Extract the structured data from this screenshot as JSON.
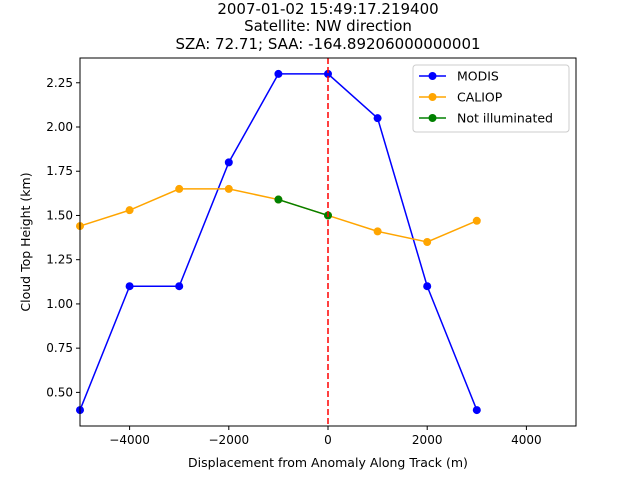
{
  "chart_data": {
    "type": "line",
    "title_lines": [
      "2007-01-02 15:49:17.219400",
      "Satellite: NW direction",
      "SZA: 72.71; SAA: -164.89206000000001"
    ],
    "xlabel": "Displacement from Anomaly Along Track (m)",
    "ylabel": "Cloud Top Height (km)",
    "xlim": [
      -5000,
      5000
    ],
    "ylim": [
      0.31,
      2.39
    ],
    "xticks": [
      -4000,
      -2000,
      0,
      2000,
      4000
    ],
    "xtick_labels": [
      "−4000",
      "−2000",
      "0",
      "2000",
      "4000"
    ],
    "yticks": [
      0.5,
      0.75,
      1.0,
      1.25,
      1.5,
      1.75,
      2.0,
      2.25
    ],
    "ytick_labels": [
      "0.50",
      "0.75",
      "1.00",
      "1.25",
      "1.50",
      "1.75",
      "2.00",
      "2.25"
    ],
    "legend_position": "top-right",
    "grid": false,
    "series": [
      {
        "name": "MODIS",
        "color": "#0000ff",
        "x": [
          -5000,
          -4000,
          -3000,
          -2000,
          -1000,
          0,
          1000,
          2000,
          3000
        ],
        "y": [
          0.4,
          1.1,
          1.1,
          1.8,
          2.3,
          2.3,
          2.05,
          1.1,
          0.4
        ]
      },
      {
        "name": "CALIOP",
        "color": "#ffa500",
        "x": [
          -5000,
          -4000,
          -3000,
          -2000,
          -1000,
          0,
          1000,
          2000,
          3000
        ],
        "y": [
          1.44,
          1.53,
          1.65,
          1.65,
          1.59,
          1.5,
          1.41,
          1.35,
          1.47
        ]
      },
      {
        "name": "Not illuminated",
        "color": "#008000",
        "x": [
          -1000,
          0
        ],
        "y": [
          1.59,
          1.5
        ]
      }
    ],
    "vline": {
      "x": 0,
      "color": "#ff0000",
      "style": "dashed"
    }
  }
}
